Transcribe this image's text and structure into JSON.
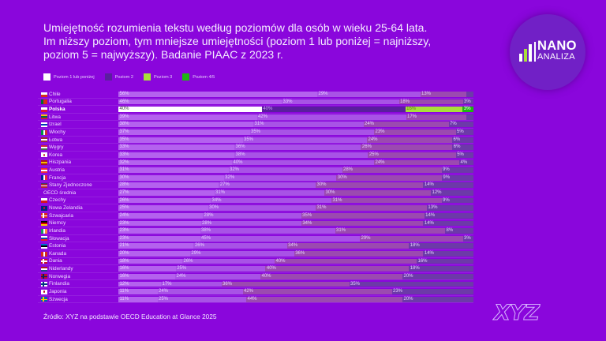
{
  "header": {
    "title_line1": "Umiejętność rozumienia tekstu według poziomów dla osób w wieku 25-64 lata.",
    "title_line2": "Im niższy poziom, tym mniejsze umiejętności (poziom 1 lub poniżej = najniższy,",
    "title_line3": "poziom 5 = najwyższy). Badanie PIAAC z 2023 r."
  },
  "legend": [
    {
      "label": "Poziom 1 lub poniżej",
      "color": "#ffffff"
    },
    {
      "label": "Poziom 2",
      "color": "#5a1f9e"
    },
    {
      "label": "Poziom 3",
      "color": "#a8e03a"
    },
    {
      "label": "Poziom 4/5",
      "color": "#1fb512"
    }
  ],
  "logo": {
    "word1": "NANO",
    "word2": "ANALIZA",
    "accent": "#a8e03a"
  },
  "footer": {
    "source": "Źródło: XYZ na podstawie OECD Education at Glance 2025",
    "brand": "XYZ"
  },
  "colors": {
    "background": "#8a06dc",
    "faded_segments": [
      "#b462ee",
      "#a853e6",
      "#9b4ab0",
      "#6c3aa8"
    ],
    "highlight_label_colors": [
      "#4a4a4a",
      "#c7a6f0",
      "#5f7f1a",
      "#ffffff"
    ],
    "faded_label_color": "#e7d0ff"
  },
  "flags": {
    "Chile": {
      "dir": "h",
      "stripes": [
        "#ffffff",
        "#d52b1e"
      ]
    },
    "Portugalia": {
      "dir": "v",
      "stripes": [
        "#046a38",
        "#da291c",
        "#da291c"
      ]
    },
    "Polska": {
      "dir": "h",
      "stripes": [
        "#ffffff",
        "#dc143c"
      ]
    },
    "Litwa": {
      "dir": "h",
      "stripes": [
        "#fdb913",
        "#006a44",
        "#c1272d"
      ]
    },
    "Izrael": {
      "dir": "h",
      "stripes": [
        "#ffffff",
        "#0038b8",
        "#ffffff"
      ]
    },
    "Włochy": {
      "dir": "v",
      "stripes": [
        "#009246",
        "#ffffff",
        "#ce2b37"
      ]
    },
    "Łotwa": {
      "dir": "h",
      "stripes": [
        "#9e3039",
        "#ffffff",
        "#9e3039"
      ]
    },
    "Węgry": {
      "dir": "h",
      "stripes": [
        "#ce2939",
        "#ffffff",
        "#477050"
      ]
    },
    "Korea": {
      "dir": "h",
      "stripes": [
        "#ffffff"
      ],
      "dot": "#cd2e3a"
    },
    "Hiszpania": {
      "dir": "h",
      "stripes": [
        "#aa151b",
        "#f1bf00",
        "#aa151b"
      ]
    },
    "Austria": {
      "dir": "h",
      "stripes": [
        "#ed2939",
        "#ffffff",
        "#ed2939"
      ]
    },
    "Francja": {
      "dir": "v",
      "stripes": [
        "#002395",
        "#ffffff",
        "#ed2939"
      ]
    },
    "Stany Zjednoczone": {
      "dir": "h",
      "stripes": [
        "#3c3b6e",
        "#b22234",
        "#ffffff",
        "#b22234"
      ]
    },
    "Czechy": {
      "dir": "h",
      "stripes": [
        "#ffffff",
        "#d7141a"
      ]
    },
    "Nowa Zelandia": {
      "dir": "h",
      "stripes": [
        "#00247d"
      ],
      "dot": "#cc142b"
    },
    "Szwajcaria": {
      "dir": "h",
      "stripes": [
        "#da291c"
      ],
      "cross": "#ffffff"
    },
    "Niemcy": {
      "dir": "h",
      "stripes": [
        "#000000",
        "#dd0000",
        "#ffce00"
      ]
    },
    "Irlandia": {
      "dir": "v",
      "stripes": [
        "#169b62",
        "#ffffff",
        "#ff883e"
      ]
    },
    "Słowacja": {
      "dir": "h",
      "stripes": [
        "#ffffff",
        "#0b4ea2",
        "#ee1c25"
      ]
    },
    "Estonia": {
      "dir": "h",
      "stripes": [
        "#0072ce",
        "#000000",
        "#ffffff"
      ]
    },
    "Kanada": {
      "dir": "v",
      "stripes": [
        "#d52b1e",
        "#ffffff",
        "#d52b1e"
      ]
    },
    "Dania": {
      "dir": "h",
      "stripes": [
        "#c8102e"
      ],
      "cross": "#ffffff"
    },
    "Niderlandy": {
      "dir": "h",
      "stripes": [
        "#ae1c28",
        "#ffffff",
        "#21468b"
      ]
    },
    "Norwegia": {
      "dir": "h",
      "stripes": [
        "#ba0c2f"
      ],
      "cross": "#00205b"
    },
    "Finlandia": {
      "dir": "h",
      "stripes": [
        "#ffffff"
      ],
      "cross": "#003580"
    },
    "Japonia": {
      "dir": "h",
      "stripes": [
        "#ffffff"
      ],
      "dot": "#bc002d"
    },
    "Szwecja": {
      "dir": "h",
      "stripes": [
        "#006aa7"
      ],
      "cross": "#fecc00"
    }
  },
  "chart_data": {
    "type": "bar",
    "orientation": "horizontal",
    "stacked": true,
    "title": "Umiejętność rozumienia tekstu według poziomów dla osób w wieku 25-64 lata. Im niższy poziom, tym mniejsze umiejętności (poziom 1 lub poniżej = najniższy, poziom 5 = najwyższy). Badanie PIAAC z 2023 r.",
    "xlabel": "",
    "ylabel": "",
    "unit": "%",
    "xlim": [
      0,
      100
    ],
    "grid": false,
    "legend_position": "top-left",
    "highlight": "Polska",
    "categories": [
      "Chile",
      "Portugalia",
      "Polska",
      "Litwa",
      "Izrael",
      "Włochy",
      "Łotwa",
      "Węgry",
      "Korea",
      "Hiszpania",
      "Austria",
      "Francja",
      "Stany Zjednoczone",
      "OECD średnia",
      "Czechy",
      "Nowa Zelandia",
      "Szwajcaria",
      "Niemcy",
      "Irlandia",
      "Słowacja",
      "Estonia",
      "Kanada",
      "Dania",
      "Niderlandy",
      "Norwegia",
      "Finlandia",
      "Japonia",
      "Szwecja"
    ],
    "series": [
      {
        "name": "Poziom 1 lub poniżej",
        "color": "#ffffff",
        "values": [
          56,
          46,
          40,
          39,
          38,
          37,
          35,
          33,
          33,
          32,
          31,
          30,
          28,
          27,
          26,
          25,
          24,
          23,
          23,
          23,
          21,
          20,
          18,
          16,
          16,
          12,
          11,
          11
        ]
      },
      {
        "name": "Poziom 2",
        "color": "#5a1f9e",
        "values": [
          29,
          33,
          40,
          42,
          31,
          35,
          35,
          36,
          38,
          40,
          32,
          32,
          27,
          31,
          34,
          30,
          28,
          28,
          38,
          45,
          26,
          29,
          26,
          25,
          24,
          17,
          24,
          25
        ]
      },
      {
        "name": "Poziom 3",
        "color": "#a8e03a",
        "values": [
          13,
          18,
          16,
          17,
          24,
          23,
          24,
          26,
          25,
          24,
          28,
          30,
          30,
          30,
          31,
          31,
          35,
          34,
          31,
          29,
          34,
          36,
          40,
          40,
          40,
          36,
          42,
          44
        ]
      },
      {
        "name": "Poziom 4/5",
        "color": "#1fb512",
        "values": [
          2,
          3,
          3,
          2,
          7,
          5,
          6,
          6,
          5,
          4,
          9,
          9,
          14,
          12,
          9,
          13,
          14,
          14,
          8,
          3,
          18,
          14,
          16,
          18,
          20,
          35,
          23,
          20
        ]
      }
    ]
  }
}
